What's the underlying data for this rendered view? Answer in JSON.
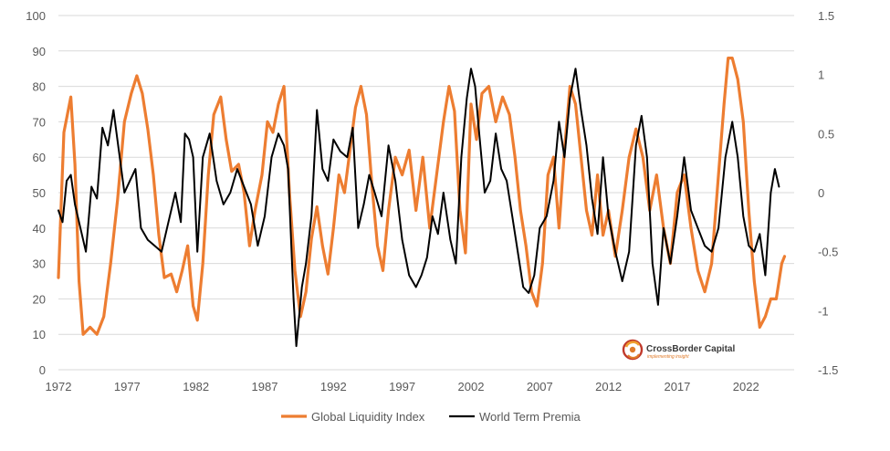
{
  "chart_data": {
    "type": "line",
    "title": "",
    "x_tick_labels": [
      "1972",
      "1977",
      "1982",
      "1987",
      "1992",
      "1997",
      "2002",
      "2007",
      "2012",
      "2017",
      "2022"
    ],
    "y_left_tick_labels": [
      "0",
      "10",
      "20",
      "30",
      "40",
      "50",
      "60",
      "70",
      "80",
      "90",
      "100"
    ],
    "y_right_tick_labels": [
      "-1.5",
      "-1",
      "-0.5",
      "0",
      "0.5",
      "1",
      "1.5"
    ],
    "ylim_left": [
      0,
      100
    ],
    "ylim_right": [
      -1.5,
      1.5
    ],
    "xlim": [
      1972,
      2025.5
    ],
    "gridlines": "horizontal",
    "legend_position": "bottom-center",
    "series": [
      {
        "name": "Global Liquidity Index",
        "axis": "left",
        "color": "#ED7D31",
        "points": [
          [
            1972,
            26
          ],
          [
            1972.4,
            67
          ],
          [
            1972.9,
            77
          ],
          [
            1973.2,
            58
          ],
          [
            1973.5,
            25
          ],
          [
            1973.8,
            10
          ],
          [
            1974.3,
            12
          ],
          [
            1974.8,
            10
          ],
          [
            1975.3,
            15
          ],
          [
            1975.8,
            30
          ],
          [
            1976.3,
            48
          ],
          [
            1976.8,
            70
          ],
          [
            1977.3,
            78
          ],
          [
            1977.7,
            83
          ],
          [
            1978.1,
            78
          ],
          [
            1978.5,
            68
          ],
          [
            1978.9,
            55
          ],
          [
            1979.3,
            38
          ],
          [
            1979.7,
            26
          ],
          [
            1980.2,
            27
          ],
          [
            1980.6,
            22
          ],
          [
            1981.0,
            28
          ],
          [
            1981.4,
            35
          ],
          [
            1981.8,
            18
          ],
          [
            1982.1,
            14
          ],
          [
            1982.5,
            30
          ],
          [
            1982.9,
            55
          ],
          [
            1983.3,
            72
          ],
          [
            1983.8,
            77
          ],
          [
            1984.2,
            65
          ],
          [
            1984.6,
            56
          ],
          [
            1985.1,
            58
          ],
          [
            1985.5,
            50
          ],
          [
            1985.9,
            35
          ],
          [
            1986.3,
            45
          ],
          [
            1986.8,
            55
          ],
          [
            1987.2,
            70
          ],
          [
            1987.6,
            67
          ],
          [
            1988.0,
            75
          ],
          [
            1988.4,
            80
          ],
          [
            1988.8,
            50
          ],
          [
            1989.2,
            28
          ],
          [
            1989.6,
            15
          ],
          [
            1990.0,
            22
          ],
          [
            1990.4,
            37
          ],
          [
            1990.8,
            46
          ],
          [
            1991.2,
            35
          ],
          [
            1991.6,
            27
          ],
          [
            1992.0,
            40
          ],
          [
            1992.4,
            55
          ],
          [
            1992.8,
            50
          ],
          [
            1993.2,
            62
          ],
          [
            1993.6,
            74
          ],
          [
            1994.0,
            80
          ],
          [
            1994.4,
            72
          ],
          [
            1994.8,
            52
          ],
          [
            1995.2,
            35
          ],
          [
            1995.6,
            28
          ],
          [
            1996.0,
            45
          ],
          [
            1996.5,
            60
          ],
          [
            1997.0,
            55
          ],
          [
            1997.5,
            62
          ],
          [
            1998.0,
            45
          ],
          [
            1998.5,
            60
          ],
          [
            1999.0,
            40
          ],
          [
            1999.5,
            55
          ],
          [
            2000.0,
            70
          ],
          [
            2000.4,
            80
          ],
          [
            2000.8,
            73
          ],
          [
            2001.2,
            45
          ],
          [
            2001.6,
            33
          ],
          [
            2002.0,
            75
          ],
          [
            2002.4,
            65
          ],
          [
            2002.8,
            78
          ],
          [
            2003.3,
            80
          ],
          [
            2003.8,
            70
          ],
          [
            2004.3,
            77
          ],
          [
            2004.8,
            72
          ],
          [
            2005.2,
            60
          ],
          [
            2005.6,
            45
          ],
          [
            2006.0,
            35
          ],
          [
            2006.4,
            22
          ],
          [
            2006.8,
            18
          ],
          [
            2007.2,
            30
          ],
          [
            2007.6,
            55
          ],
          [
            2008.0,
            60
          ],
          [
            2008.4,
            40
          ],
          [
            2008.8,
            62
          ],
          [
            2009.2,
            80
          ],
          [
            2009.6,
            75
          ],
          [
            2010.0,
            60
          ],
          [
            2010.4,
            45
          ],
          [
            2010.8,
            38
          ],
          [
            2011.2,
            55
          ],
          [
            2011.6,
            38
          ],
          [
            2012.0,
            45
          ],
          [
            2012.5,
            32
          ],
          [
            2013.0,
            45
          ],
          [
            2013.5,
            60
          ],
          [
            2014.0,
            68
          ],
          [
            2014.5,
            60
          ],
          [
            2015.0,
            45
          ],
          [
            2015.5,
            55
          ],
          [
            2016.0,
            40
          ],
          [
            2016.5,
            30
          ],
          [
            2017.0,
            50
          ],
          [
            2017.5,
            55
          ],
          [
            2018.0,
            40
          ],
          [
            2018.5,
            28
          ],
          [
            2019.0,
            22
          ],
          [
            2019.5,
            30
          ],
          [
            2020.0,
            55
          ],
          [
            2020.4,
            75
          ],
          [
            2020.7,
            88
          ],
          [
            2021.0,
            88
          ],
          [
            2021.4,
            82
          ],
          [
            2021.8,
            70
          ],
          [
            2022.2,
            45
          ],
          [
            2022.6,
            25
          ],
          [
            2023.0,
            12
          ],
          [
            2023.4,
            15
          ],
          [
            2023.8,
            20
          ],
          [
            2024.2,
            20
          ],
          [
            2024.6,
            30
          ],
          [
            2024.8,
            32
          ]
        ]
      },
      {
        "name": "World Term Premia",
        "axis": "right",
        "color": "#000000",
        "points": [
          [
            1972,
            -0.15
          ],
          [
            1972.3,
            -0.25
          ],
          [
            1972.6,
            0.1
          ],
          [
            1972.9,
            0.15
          ],
          [
            1973.2,
            -0.1
          ],
          [
            1973.6,
            -0.3
          ],
          [
            1974.0,
            -0.5
          ],
          [
            1974.4,
            0.05
          ],
          [
            1974.8,
            -0.05
          ],
          [
            1975.2,
            0.55
          ],
          [
            1975.6,
            0.4
          ],
          [
            1976.0,
            0.7
          ],
          [
            1976.4,
            0.35
          ],
          [
            1976.8,
            0
          ],
          [
            1977.2,
            0.1
          ],
          [
            1977.6,
            0.2
          ],
          [
            1978.0,
            -0.3
          ],
          [
            1978.5,
            -0.4
          ],
          [
            1979.0,
            -0.45
          ],
          [
            1979.5,
            -0.5
          ],
          [
            1980.0,
            -0.25
          ],
          [
            1980.5,
            0
          ],
          [
            1980.9,
            -0.25
          ],
          [
            1981.2,
            0.5
          ],
          [
            1981.5,
            0.45
          ],
          [
            1981.8,
            0.3
          ],
          [
            1982.1,
            -0.5
          ],
          [
            1982.5,
            0.3
          ],
          [
            1983.0,
            0.5
          ],
          [
            1983.5,
            0.1
          ],
          [
            1984.0,
            -0.1
          ],
          [
            1984.5,
            0
          ],
          [
            1985.0,
            0.2
          ],
          [
            1985.5,
            0.05
          ],
          [
            1986.0,
            -0.1
          ],
          [
            1986.5,
            -0.45
          ],
          [
            1987.0,
            -0.2
          ],
          [
            1987.5,
            0.3
          ],
          [
            1988.0,
            0.5
          ],
          [
            1988.4,
            0.4
          ],
          [
            1988.7,
            0.2
          ],
          [
            1989.1,
            -0.9
          ],
          [
            1989.3,
            -1.3
          ],
          [
            1989.7,
            -0.8
          ],
          [
            1990.0,
            -0.6
          ],
          [
            1990.4,
            -0.2
          ],
          [
            1990.8,
            0.7
          ],
          [
            1991.2,
            0.2
          ],
          [
            1991.6,
            0.1
          ],
          [
            1992.0,
            0.45
          ],
          [
            1992.5,
            0.35
          ],
          [
            1993.0,
            0.3
          ],
          [
            1993.4,
            0.55
          ],
          [
            1993.8,
            -0.3
          ],
          [
            1994.2,
            -0.1
          ],
          [
            1994.6,
            0.15
          ],
          [
            1995.0,
            0
          ],
          [
            1995.5,
            -0.2
          ],
          [
            1996.0,
            0.4
          ],
          [
            1996.5,
            0.1
          ],
          [
            1997.0,
            -0.4
          ],
          [
            1997.5,
            -0.7
          ],
          [
            1998.0,
            -0.8
          ],
          [
            1998.4,
            -0.7
          ],
          [
            1998.8,
            -0.55
          ],
          [
            1999.2,
            -0.2
          ],
          [
            1999.6,
            -0.35
          ],
          [
            2000.0,
            0
          ],
          [
            2000.5,
            -0.4
          ],
          [
            2000.9,
            -0.6
          ],
          [
            2001.3,
            0.3
          ],
          [
            2001.7,
            0.8
          ],
          [
            2002.0,
            1.05
          ],
          [
            2002.3,
            0.9
          ],
          [
            2002.6,
            0.5
          ],
          [
            2003.0,
            0
          ],
          [
            2003.4,
            0.1
          ],
          [
            2003.8,
            0.5
          ],
          [
            2004.2,
            0.2
          ],
          [
            2004.6,
            0.1
          ],
          [
            2005.0,
            -0.2
          ],
          [
            2005.4,
            -0.5
          ],
          [
            2005.8,
            -0.8
          ],
          [
            2006.2,
            -0.85
          ],
          [
            2006.6,
            -0.7
          ],
          [
            2007.0,
            -0.3
          ],
          [
            2007.5,
            -0.2
          ],
          [
            2008.0,
            0.1
          ],
          [
            2008.4,
            0.6
          ],
          [
            2008.8,
            0.3
          ],
          [
            2009.2,
            0.8
          ],
          [
            2009.6,
            1.05
          ],
          [
            2010.0,
            0.7
          ],
          [
            2010.4,
            0.4
          ],
          [
            2010.8,
            -0.05
          ],
          [
            2011.2,
            -0.35
          ],
          [
            2011.6,
            0.3
          ],
          [
            2012.0,
            -0.2
          ],
          [
            2012.5,
            -0.5
          ],
          [
            2013.0,
            -0.75
          ],
          [
            2013.5,
            -0.5
          ],
          [
            2014.0,
            0.4
          ],
          [
            2014.4,
            0.65
          ],
          [
            2014.8,
            0.3
          ],
          [
            2015.2,
            -0.6
          ],
          [
            2015.6,
            -0.95
          ],
          [
            2016.0,
            -0.3
          ],
          [
            2016.5,
            -0.6
          ],
          [
            2017.0,
            -0.2
          ],
          [
            2017.5,
            0.3
          ],
          [
            2018.0,
            -0.15
          ],
          [
            2018.5,
            -0.3
          ],
          [
            2019.0,
            -0.45
          ],
          [
            2019.5,
            -0.5
          ],
          [
            2020.0,
            -0.3
          ],
          [
            2020.5,
            0.3
          ],
          [
            2021.0,
            0.6
          ],
          [
            2021.4,
            0.3
          ],
          [
            2021.8,
            -0.2
          ],
          [
            2022.2,
            -0.45
          ],
          [
            2022.6,
            -0.5
          ],
          [
            2023.0,
            -0.35
          ],
          [
            2023.4,
            -0.7
          ],
          [
            2023.8,
            0
          ],
          [
            2024.1,
            0.2
          ],
          [
            2024.4,
            0.05
          ]
        ]
      }
    ]
  },
  "legend": {
    "items": [
      {
        "label": "Global Liquidity Index",
        "color": "#ED7D31"
      },
      {
        "label": "World Term Premia",
        "color": "#000000"
      }
    ]
  },
  "logo": {
    "name": "CrossBorder Capital",
    "tagline": "implementing insight"
  }
}
